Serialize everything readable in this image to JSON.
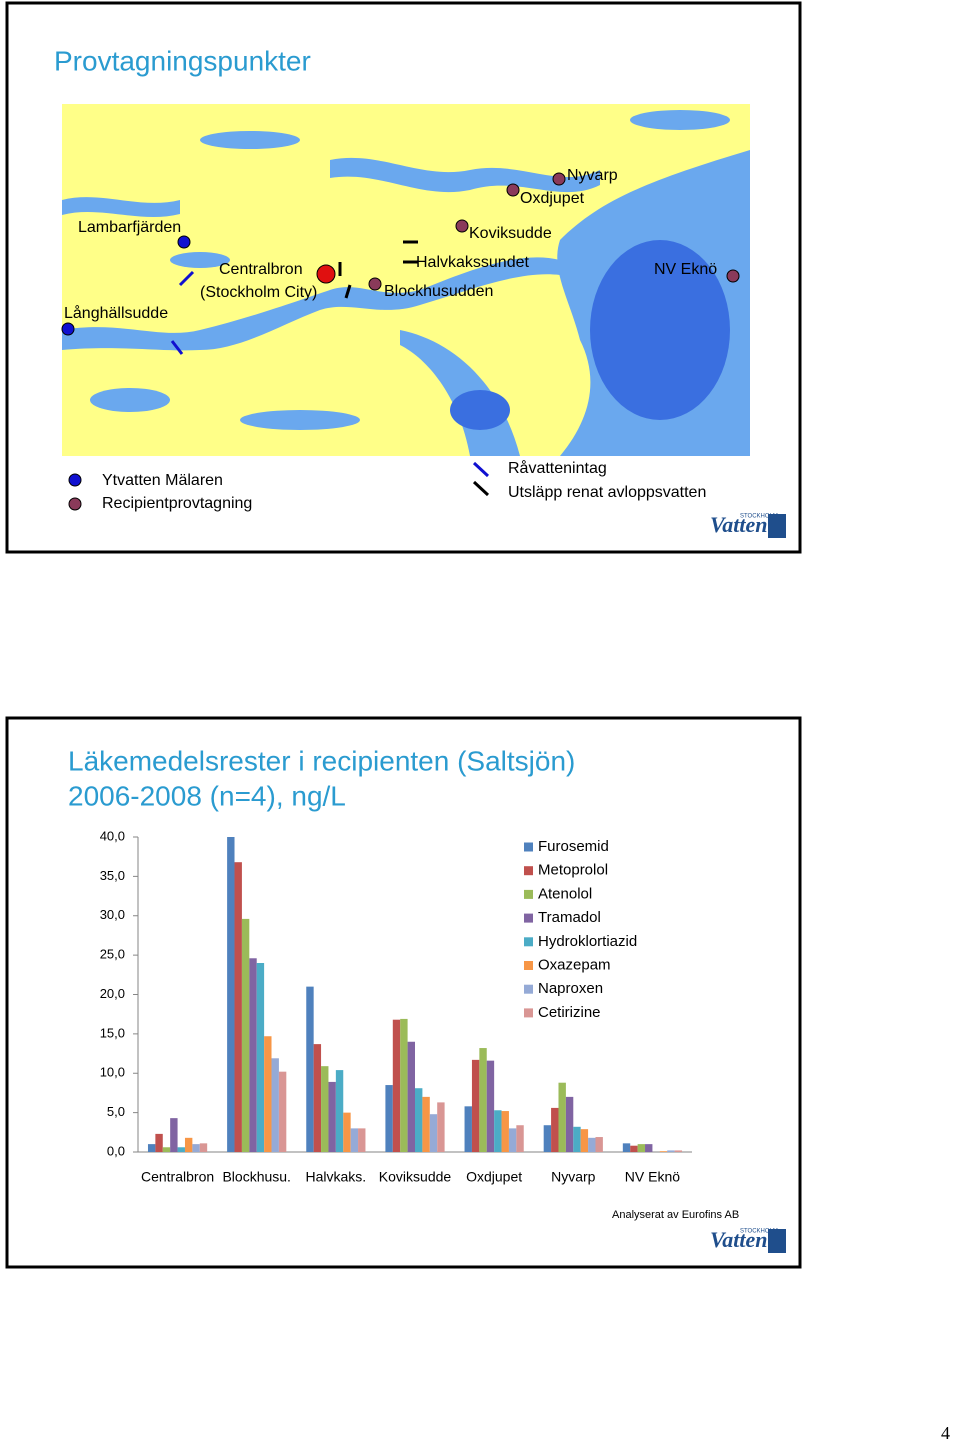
{
  "map_slide": {
    "title": "Provtagningspunkter",
    "places": [
      "Lambarfjärden",
      "Centralbron",
      "(Stockholm City)",
      "Långhällsudde",
      "Blockhusudden",
      "Halvkakssundet",
      "Koviksudde",
      "Oxdjupet",
      "Nyvarp",
      "NV Eknö"
    ],
    "legend": [
      "Ytvatten Mälaren",
      "Recipientprovtagning",
      "Råvattenintag",
      "Utsläpp renat avloppsvatten"
    ],
    "logo": {
      "top": "STOCKHOLM",
      "main": "Vatten"
    }
  },
  "chart_data": {
    "type": "bar",
    "title": "Läkemedelsrester i recipienten (Saltsjön)",
    "subtitle": "2006-2008 (n=4), ng/L",
    "categories": [
      "Centralbron",
      "Blockhusu.",
      "Halvkaks.",
      "Koviksudde",
      "Oxdjupet",
      "Nyvarp",
      "NV Eknö"
    ],
    "series": [
      {
        "name": "Furosemid",
        "color": "#4F81BD",
        "values": [
          1.0,
          40.0,
          21.0,
          8.5,
          5.8,
          3.4,
          1.1
        ]
      },
      {
        "name": "Metoprolol",
        "color": "#C0504D",
        "values": [
          2.3,
          36.8,
          13.7,
          16.8,
          11.7,
          5.6,
          0.8
        ]
      },
      {
        "name": "Atenolol",
        "color": "#9BBB59",
        "values": [
          0.6,
          29.6,
          10.9,
          16.9,
          13.2,
          8.8,
          1.0
        ]
      },
      {
        "name": "Tramadol",
        "color": "#8064A2",
        "values": [
          4.3,
          24.6,
          8.9,
          14.0,
          11.6,
          7.0,
          1.0
        ]
      },
      {
        "name": "Hydroklortiazid",
        "color": "#4BACC6",
        "values": [
          0.6,
          24.0,
          10.4,
          8.1,
          5.3,
          3.2,
          0.0
        ]
      },
      {
        "name": "Oxazepam",
        "color": "#F79646",
        "values": [
          1.8,
          14.7,
          5.0,
          7.0,
          5.2,
          2.9,
          0.1
        ]
      },
      {
        "name": "Naproxen",
        "color": "#95AAD6",
        "values": [
          1.0,
          11.9,
          3.0,
          4.8,
          3.0,
          1.8,
          0.2
        ]
      },
      {
        "name": "Cetirizine",
        "color": "#D99694",
        "values": [
          1.1,
          10.2,
          3.0,
          6.3,
          3.4,
          1.9,
          0.2
        ]
      }
    ],
    "ylim": [
      0,
      40
    ],
    "yticks": [
      {
        "value": 0,
        "label": "0,0"
      },
      {
        "value": 5,
        "label": "5,0"
      },
      {
        "value": 10,
        "label": "10,0"
      },
      {
        "value": 15,
        "label": "15,0"
      },
      {
        "value": 20,
        "label": "20,0"
      },
      {
        "value": 25,
        "label": "25,0"
      },
      {
        "value": 30,
        "label": "30,0"
      },
      {
        "value": 35,
        "label": "35,0"
      },
      {
        "value": 40,
        "label": "40,0"
      }
    ],
    "note": "Analyserat av Eurofins AB",
    "logo": {
      "top": "STOCKHOLM",
      "main": "Vatten"
    }
  },
  "page_number": "4"
}
